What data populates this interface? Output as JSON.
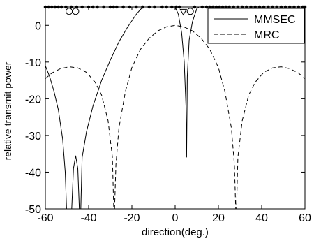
{
  "chart_data": {
    "type": "line",
    "xlabel": "direction(deg.)",
    "ylabel": "relative transmit power",
    "xlim": [
      -60,
      60
    ],
    "ylim": [
      -50,
      5
    ],
    "xticks": [
      -60,
      -40,
      -20,
      0,
      20,
      40,
      60
    ],
    "yticks": [
      0,
      -10,
      -20,
      -30,
      -40,
      -50
    ],
    "grid": false,
    "legend_position": "top-right",
    "series": [
      {
        "name": "MMSEC",
        "style": "solid",
        "color": "#000000",
        "points": [
          [
            -60,
            -11
          ],
          [
            -58,
            -14
          ],
          [
            -56,
            -18
          ],
          [
            -54,
            -23
          ],
          [
            -52,
            -31
          ],
          [
            -50.8,
            -40
          ],
          [
            -50.2,
            -50
          ],
          [
            -47.8,
            -50
          ],
          [
            -47,
            -39
          ],
          [
            -46,
            -35.5
          ],
          [
            -45,
            -39
          ],
          [
            -44.3,
            -50
          ],
          [
            -43.6,
            -50
          ],
          [
            -43,
            -36
          ],
          [
            -41,
            -29
          ],
          [
            -38,
            -22
          ],
          [
            -34,
            -15
          ],
          [
            -30,
            -9.5
          ],
          [
            -26,
            -4.5
          ],
          [
            -22,
            -0.5
          ],
          [
            -18,
            3
          ],
          [
            -15,
            5
          ],
          [
            0,
            5
          ],
          [
            1.5,
            3
          ],
          [
            3,
            -2
          ],
          [
            4.2,
            -10
          ],
          [
            5,
            -22
          ],
          [
            5.3,
            -36
          ],
          [
            5.6,
            -14
          ],
          [
            6.5,
            -4
          ],
          [
            8,
            1
          ],
          [
            10,
            4.5
          ],
          [
            11,
            5
          ],
          [
            60,
            5
          ]
        ]
      },
      {
        "name": "MRC",
        "style": "dashed",
        "color": "#000000",
        "points": [
          [
            -60,
            -14.5
          ],
          [
            -57,
            -13
          ],
          [
            -53,
            -11.8
          ],
          [
            -49,
            -11.3
          ],
          [
            -45,
            -11.6
          ],
          [
            -41,
            -12.8
          ],
          [
            -37,
            -15.5
          ],
          [
            -34,
            -19
          ],
          [
            -31,
            -26
          ],
          [
            -29,
            -36
          ],
          [
            -28.4,
            -50
          ],
          [
            -28,
            -50
          ],
          [
            -27.4,
            -38
          ],
          [
            -26,
            -28
          ],
          [
            -23,
            -18
          ],
          [
            -20,
            -11.5
          ],
          [
            -16,
            -6.5
          ],
          [
            -12,
            -3.5
          ],
          [
            -8,
            -1.5
          ],
          [
            -4,
            -0.4
          ],
          [
            0,
            0
          ],
          [
            4,
            -0.4
          ],
          [
            8,
            -1.5
          ],
          [
            12,
            -3.5
          ],
          [
            16,
            -6.5
          ],
          [
            20,
            -11.5
          ],
          [
            23,
            -18
          ],
          [
            26,
            -28
          ],
          [
            27.4,
            -38
          ],
          [
            28,
            -50
          ],
          [
            28.4,
            -50
          ],
          [
            29,
            -36
          ],
          [
            31,
            -26
          ],
          [
            34,
            -19
          ],
          [
            37,
            -15.5
          ],
          [
            41,
            -12.8
          ],
          [
            45,
            -11.6
          ],
          [
            49,
            -11.3
          ],
          [
            53,
            -11.8
          ],
          [
            57,
            -13
          ],
          [
            60,
            -14.5
          ]
        ]
      }
    ],
    "markers": {
      "filled_dots_y": 5,
      "filled_dots_x": [
        -60,
        -58.5,
        -57,
        -55.5,
        -54,
        -52.5,
        -50.5,
        -48,
        -45.5,
        -43,
        -40,
        -38,
        -36,
        -33,
        -30,
        -28.5,
        -27,
        -24,
        -21,
        -18,
        -15,
        -12,
        -9.5,
        -6,
        -4,
        -1.5,
        0.5,
        2,
        9,
        12.5,
        14.5,
        16,
        17.5,
        19,
        20.5,
        22,
        23.5,
        25,
        27,
        29,
        31,
        33,
        35,
        37,
        39,
        41,
        43,
        45,
        47,
        49,
        51,
        53,
        55,
        57,
        59,
        60
      ],
      "open_circles": [
        [
          -49,
          3.8
        ],
        [
          -46,
          3.8
        ],
        [
          7,
          3.8
        ]
      ],
      "open_triangles": [
        [
          3.8,
          3.6
        ]
      ]
    }
  }
}
